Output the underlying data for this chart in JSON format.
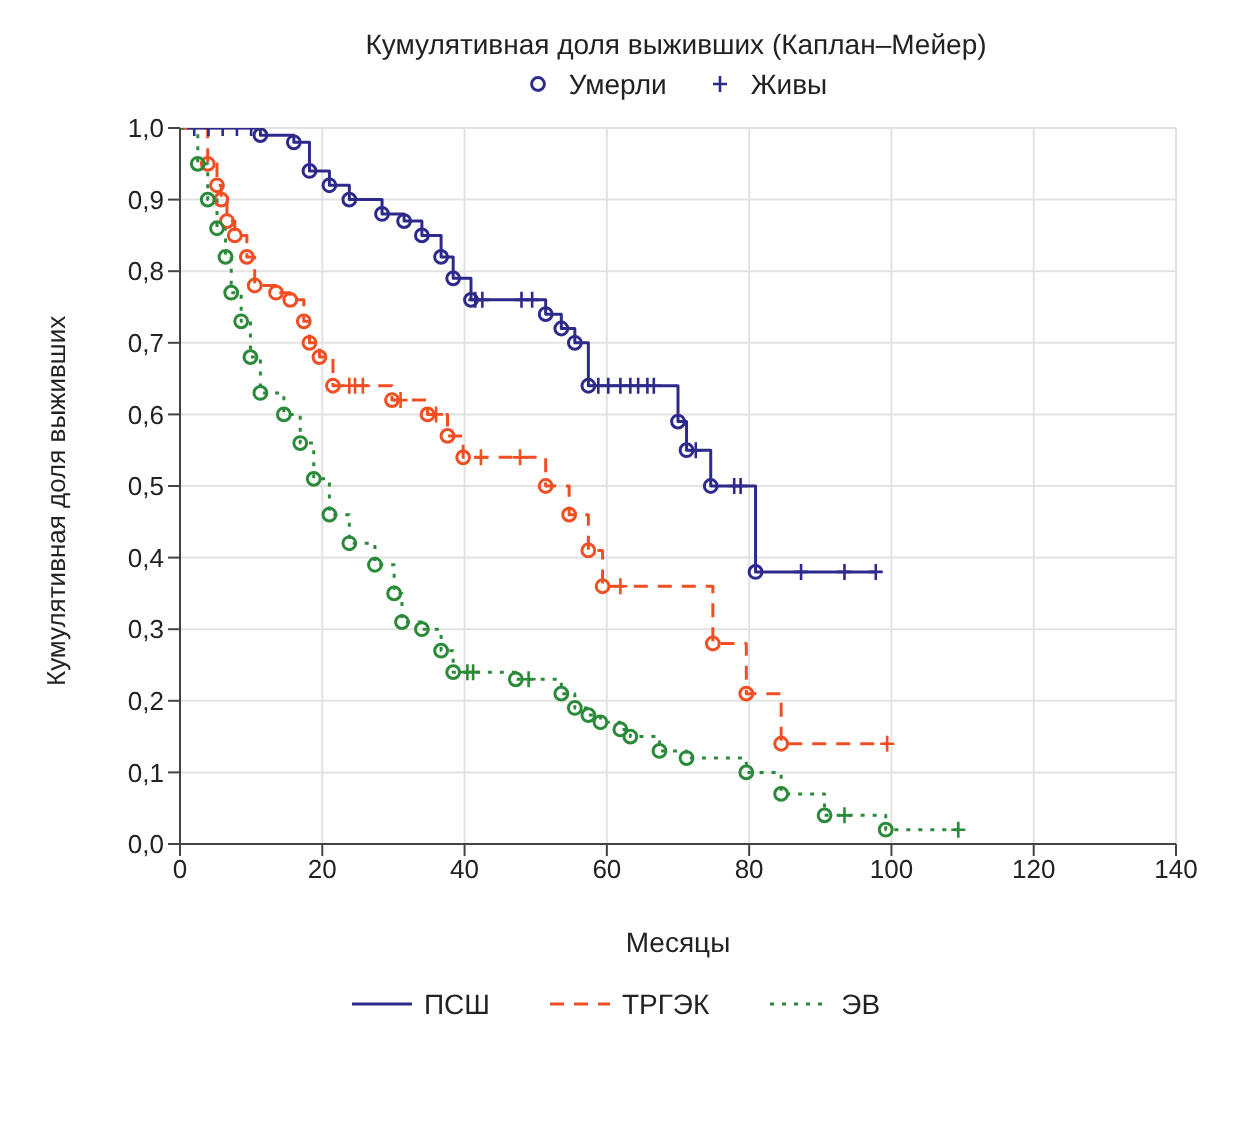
{
  "chart_data": {
    "type": "step",
    "title": "Кумулятивная доля выживших (Каплан–Мейер)",
    "xlabel": "Месяцы",
    "ylabel": "Кумулятивная доля выживших",
    "xlim": [
      0,
      140
    ],
    "xticks": [
      0,
      20,
      40,
      60,
      80,
      100,
      120,
      140
    ],
    "ylim": [
      0,
      1
    ],
    "yticks": [
      {
        "value": 0,
        "label": "0,0"
      },
      {
        "value": 0.1,
        "label": "0,1"
      },
      {
        "value": 0.2,
        "label": "0,2"
      },
      {
        "value": 0.3,
        "label": "0,3"
      },
      {
        "value": 0.4,
        "label": "0,4"
      },
      {
        "value": 0.5,
        "label": "0,5"
      },
      {
        "value": 0.6,
        "label": "0,6"
      },
      {
        "value": 0.7,
        "label": "0,7"
      },
      {
        "value": 0.8,
        "label": "0,8"
      },
      {
        "value": 0.9,
        "label": "0,9"
      },
      {
        "value": 1,
        "label": "1,0"
      }
    ],
    "grid": true,
    "legend": "bottom",
    "series": [
      {
        "name": "ПСШ",
        "color": "#2e2a8c",
        "line_style": "solid",
        "marker": "none",
        "x": [
          0,
          11.3,
          16,
          18.2,
          21,
          23.8,
          28.4,
          31.5,
          34,
          36.7,
          38.4,
          40.9,
          51.4,
          53.6,
          55.5,
          57.4,
          70,
          71.2,
          74.6,
          80.9,
          97.8
        ],
        "values": [
          1,
          0.99,
          0.98,
          0.94,
          0.92,
          0.9,
          0.88,
          0.87,
          0.85,
          0.82,
          0.79,
          0.76,
          0.74,
          0.72,
          0.7,
          0.64,
          0.59,
          0.55,
          0.5,
          0.38,
          0.38
        ]
      },
      {
        "name": "ТРГЭК",
        "color": "#f04e23",
        "line_style": "dashed",
        "marker": "none",
        "x": [
          0,
          3.9,
          5.2,
          5.8,
          6.6,
          7.7,
          9.4,
          10.5,
          13.5,
          15.5,
          17.4,
          18.2,
          19.6,
          21.5,
          29.8,
          34.8,
          37.6,
          39.8,
          51.4,
          54.7,
          57.4,
          59.4,
          74.9,
          79.6,
          84.5,
          99.4
        ],
        "values": [
          1,
          0.95,
          0.92,
          0.9,
          0.87,
          0.85,
          0.82,
          0.78,
          0.77,
          0.76,
          0.73,
          0.7,
          0.68,
          0.64,
          0.62,
          0.6,
          0.57,
          0.54,
          0.5,
          0.46,
          0.41,
          0.36,
          0.28,
          0.21,
          0.14,
          0.14
        ]
      },
      {
        "name": "ЭВ",
        "color": "#2a8a3a",
        "line_style": "dotted",
        "marker": "none",
        "x": [
          0,
          2.5,
          3.9,
          5.2,
          6.4,
          7.2,
          8.6,
          9.9,
          11.3,
          14.6,
          16.9,
          18.8,
          21,
          23.8,
          27.4,
          30.1,
          31.2,
          34,
          36.7,
          38.4,
          47.2,
          53.6,
          55.5,
          57.4,
          59.1,
          61.9,
          63.3,
          67.4,
          71.2,
          79.6,
          84.5,
          90.6,
          99.2,
          109.4
        ],
        "values": [
          1,
          0.95,
          0.9,
          0.86,
          0.82,
          0.77,
          0.73,
          0.68,
          0.63,
          0.6,
          0.56,
          0.51,
          0.46,
          0.42,
          0.39,
          0.35,
          0.31,
          0.3,
          0.27,
          0.24,
          0.23,
          0.21,
          0.19,
          0.18,
          0.17,
          0.16,
          0.15,
          0.13,
          0.12,
          0.1,
          0.07,
          0.04,
          0.02,
          0.02
        ]
      },
      {
        "name": "Умерли",
        "type": "scatter",
        "marker": "circle",
        "color": "#2e2a8c",
        "x": [
          11.3,
          16,
          18.2,
          21,
          23.8,
          28.4,
          31.5,
          34,
          36.7,
          38.4,
          40.9,
          51.4,
          53.6,
          55.5,
          57.4,
          70,
          71.2,
          74.6,
          80.9,
          3.9,
          5.2,
          5.8,
          6.6,
          7.7,
          9.4,
          10.5,
          13.5,
          15.5,
          17.4,
          18.2,
          19.6,
          21.5,
          29.8,
          34.8,
          37.6,
          39.8,
          51.4,
          54.7,
          57.4,
          59.4,
          74.9,
          79.6,
          84.5,
          2.5,
          3.9,
          5.2,
          6.4,
          7.2,
          8.6,
          9.9,
          11.3,
          14.6,
          16.9,
          18.8,
          21,
          23.8,
          27.4,
          30.1,
          31.2,
          34,
          36.7,
          38.4,
          47.2,
          53.6,
          55.5,
          57.4,
          59.1,
          61.9,
          63.3,
          67.4,
          71.2,
          79.6,
          84.5,
          90.6,
          99.2
        ],
        "values": [
          0.99,
          0.98,
          0.94,
          0.92,
          0.9,
          0.88,
          0.87,
          0.85,
          0.82,
          0.79,
          0.76,
          0.74,
          0.72,
          0.7,
          0.64,
          0.59,
          0.55,
          0.5,
          0.38,
          0.95,
          0.92,
          0.9,
          0.87,
          0.85,
          0.82,
          0.78,
          0.77,
          0.76,
          0.73,
          0.7,
          0.68,
          0.64,
          0.62,
          0.6,
          0.57,
          0.54,
          0.5,
          0.46,
          0.41,
          0.36,
          0.28,
          0.21,
          0.14,
          0.95,
          0.9,
          0.86,
          0.82,
          0.77,
          0.73,
          0.68,
          0.63,
          0.6,
          0.56,
          0.51,
          0.46,
          0.42,
          0.39,
          0.35,
          0.31,
          0.3,
          0.27,
          0.24,
          0.23,
          0.21,
          0.19,
          0.18,
          0.17,
          0.16,
          0.15,
          0.13,
          0.12,
          0.1,
          0.07,
          0.04,
          0.02
        ],
        "colors": [
          "#2e2a8c",
          "#2e2a8c",
          "#2e2a8c",
          "#2e2a8c",
          "#2e2a8c",
          "#2e2a8c",
          "#2e2a8c",
          "#2e2a8c",
          "#2e2a8c",
          "#2e2a8c",
          "#2e2a8c",
          "#2e2a8c",
          "#2e2a8c",
          "#2e2a8c",
          "#2e2a8c",
          "#2e2a8c",
          "#2e2a8c",
          "#2e2a8c",
          "#2e2a8c",
          "#f04e23",
          "#f04e23",
          "#f04e23",
          "#f04e23",
          "#f04e23",
          "#f04e23",
          "#f04e23",
          "#f04e23",
          "#f04e23",
          "#f04e23",
          "#f04e23",
          "#f04e23",
          "#f04e23",
          "#f04e23",
          "#f04e23",
          "#f04e23",
          "#f04e23",
          "#f04e23",
          "#f04e23",
          "#f04e23",
          "#f04e23",
          "#f04e23",
          "#f04e23",
          "#f04e23",
          "#2a8a3a",
          "#2a8a3a",
          "#2a8a3a",
          "#2a8a3a",
          "#2a8a3a",
          "#2a8a3a",
          "#2a8a3a",
          "#2a8a3a",
          "#2a8a3a",
          "#2a8a3a",
          "#2a8a3a",
          "#2a8a3a",
          "#2a8a3a",
          "#2a8a3a",
          "#2a8a3a",
          "#2a8a3a",
          "#2a8a3a",
          "#2a8a3a",
          "#2a8a3a",
          "#2a8a3a",
          "#2a8a3a",
          "#2a8a3a",
          "#2a8a3a",
          "#2a8a3a",
          "#2a8a3a",
          "#2a8a3a",
          "#2a8a3a",
          "#2a8a3a",
          "#2a8a3a",
          "#2a8a3a",
          "#2a8a3a",
          "#2a8a3a"
        ]
      },
      {
        "name": "Живы",
        "type": "scatter",
        "marker": "cross",
        "color": "#2e2a8c",
        "x": [
          2,
          4,
          6,
          8,
          10,
          41.5,
          42.5,
          48,
          49.5,
          58.8,
          60.2,
          61.9,
          63.3,
          64.4,
          65.7,
          66.6,
          72.5,
          77.9,
          78.8,
          87.3,
          93.4,
          97.8,
          23.8,
          24.6,
          25.7,
          31,
          36,
          42.3,
          47.8,
          61.9,
          99.4,
          40.4,
          41.2,
          49,
          93.4,
          109.4
        ],
        "values": [
          1,
          1,
          1,
          1,
          1,
          0.76,
          0.76,
          0.76,
          0.76,
          0.64,
          0.64,
          0.64,
          0.64,
          0.64,
          0.64,
          0.64,
          0.55,
          0.5,
          0.5,
          0.38,
          0.38,
          0.38,
          0.64,
          0.64,
          0.64,
          0.62,
          0.6,
          0.54,
          0.54,
          0.36,
          0.14,
          0.24,
          0.24,
          0.23,
          0.04,
          0.02
        ],
        "colors": [
          "#2e2a8c",
          "#2e2a8c",
          "#2e2a8c",
          "#2e2a8c",
          "#2e2a8c",
          "#2e2a8c",
          "#2e2a8c",
          "#2e2a8c",
          "#2e2a8c",
          "#2e2a8c",
          "#2e2a8c",
          "#2e2a8c",
          "#2e2a8c",
          "#2e2a8c",
          "#2e2a8c",
          "#2e2a8c",
          "#2e2a8c",
          "#2e2a8c",
          "#2e2a8c",
          "#2e2a8c",
          "#2e2a8c",
          "#2e2a8c",
          "#f04e23",
          "#f04e23",
          "#f04e23",
          "#f04e23",
          "#f04e23",
          "#f04e23",
          "#f04e23",
          "#f04e23",
          "#f04e23",
          "#2a8a3a",
          "#2a8a3a",
          "#2a8a3a",
          "#2a8a3a",
          "#2a8a3a"
        ]
      }
    ]
  }
}
